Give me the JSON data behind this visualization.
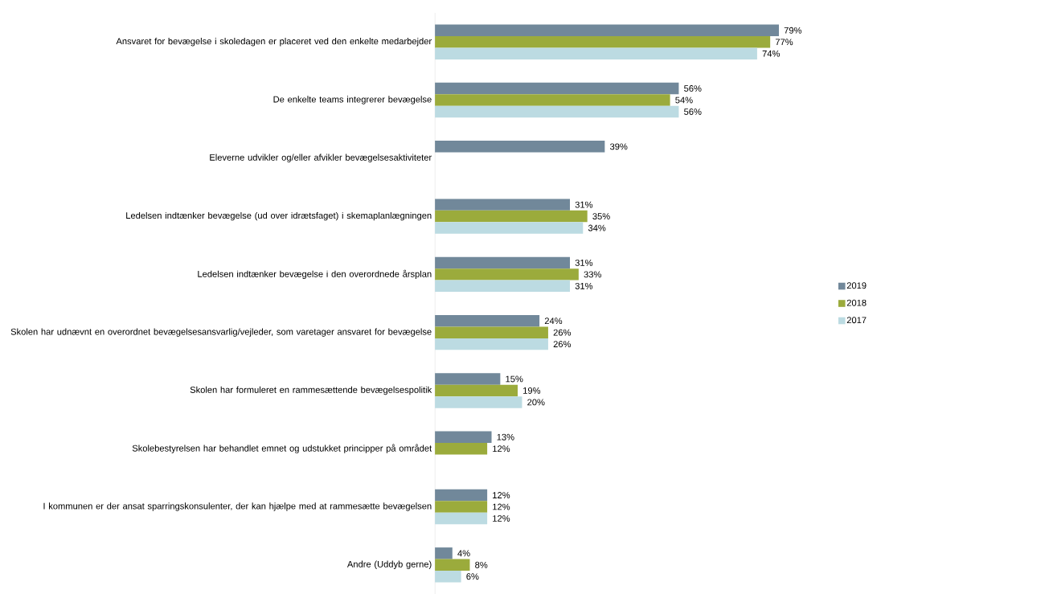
{
  "chart_data": {
    "type": "bar",
    "orientation": "horizontal",
    "legend": "right",
    "categories": [
      "Ansvaret for bevægelse i skoledagen er placeret ved den enkelte medarbejder",
      "De enkelte teams integrerer bevægelse",
      "Eleverne udvikler og/eller afvikler bevægelsesaktiviteter",
      "Ledelsen indtænker bevægelse (ud over idrætsfaget) i skemaplanlægningen",
      "Ledelsen indtænker bevægelse i den overordnede årsplan",
      "Skolen har udnævnt en overordnet bevægelsesansvarlig/vejleder, som varetager ansvaret for bevægelse",
      "Skolen har formuleret en rammesættende bevægelsespolitik",
      "Skolebestyrelsen har behandlet emnet og udstukket principper på området",
      "I kommunen er der ansat sparringskonsulenter, der kan hjælpe med at rammesætte bevægelsen",
      "Andre (Uddyb gerne)"
    ],
    "series": [
      {
        "name": "2019",
        "color": "#71889a",
        "values": [
          79,
          56,
          39,
          31,
          31,
          24,
          15,
          13,
          12,
          4
        ],
        "value_labels": [
          "79%",
          "56%",
          "39%",
          "31%",
          "31%",
          "24%",
          "15%",
          "13%",
          "12%",
          "4%"
        ]
      },
      {
        "name": "2018",
        "color": "#9bab3c",
        "values": [
          77,
          54,
          null,
          35,
          33,
          26,
          19,
          12,
          12,
          8
        ],
        "value_labels": [
          "77%",
          "54%",
          null,
          "35%",
          "33%",
          "26%",
          "19%",
          "12%",
          "12%",
          "8%"
        ]
      },
      {
        "name": "2017",
        "color": "#bcdbe2",
        "values": [
          74,
          56,
          null,
          34,
          31,
          26,
          20,
          null,
          12,
          6
        ],
        "value_labels": [
          "74%",
          "56%",
          null,
          "34%",
          "31%",
          "26%",
          "20%",
          null,
          "12%",
          "6%"
        ]
      }
    ]
  }
}
